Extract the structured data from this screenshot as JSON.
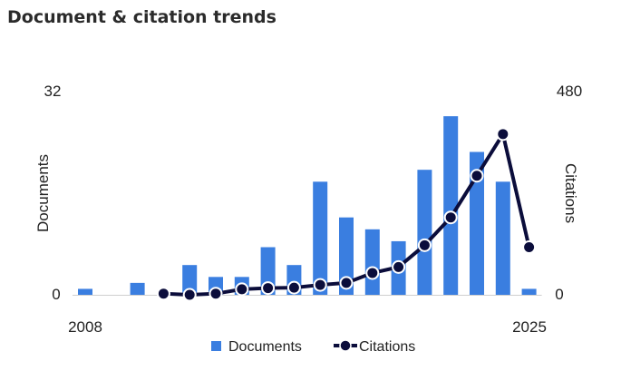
{
  "title": "Document & citation trends",
  "chart_data": {
    "type": "bar",
    "title": "Document & citation trends",
    "x_first_label": "2008",
    "x_last_label": "2025",
    "categories": [
      "2008",
      "2009",
      "2010",
      "2011",
      "2012",
      "2013",
      "2014",
      "2015",
      "2016",
      "2017",
      "2018",
      "2019",
      "2020",
      "2021",
      "2022",
      "2023",
      "2024",
      "2025"
    ],
    "series": [
      {
        "name": "Documents",
        "type": "bar",
        "axis": "left",
        "color": "#3a7ee0",
        "values": [
          1,
          0,
          2,
          0,
          5,
          3,
          3,
          8,
          5,
          19,
          13,
          11,
          9,
          21,
          30,
          24,
          19,
          1
        ]
      },
      {
        "name": "Citations",
        "type": "line",
        "axis": "right",
        "color": "#0b0d3b",
        "values": [
          null,
          null,
          null,
          3,
          0,
          3,
          14,
          17,
          18,
          25,
          30,
          55,
          70,
          125,
          195,
          300,
          405,
          120
        ]
      }
    ],
    "y_left": {
      "label": "Documents",
      "min": 0,
      "max": 32,
      "ticks": [
        "0",
        "32"
      ]
    },
    "y_right": {
      "label": "Citations",
      "min": 0,
      "max": 480,
      "ticks": [
        "0",
        "480"
      ]
    },
    "grid": false,
    "legend": "bottom"
  }
}
